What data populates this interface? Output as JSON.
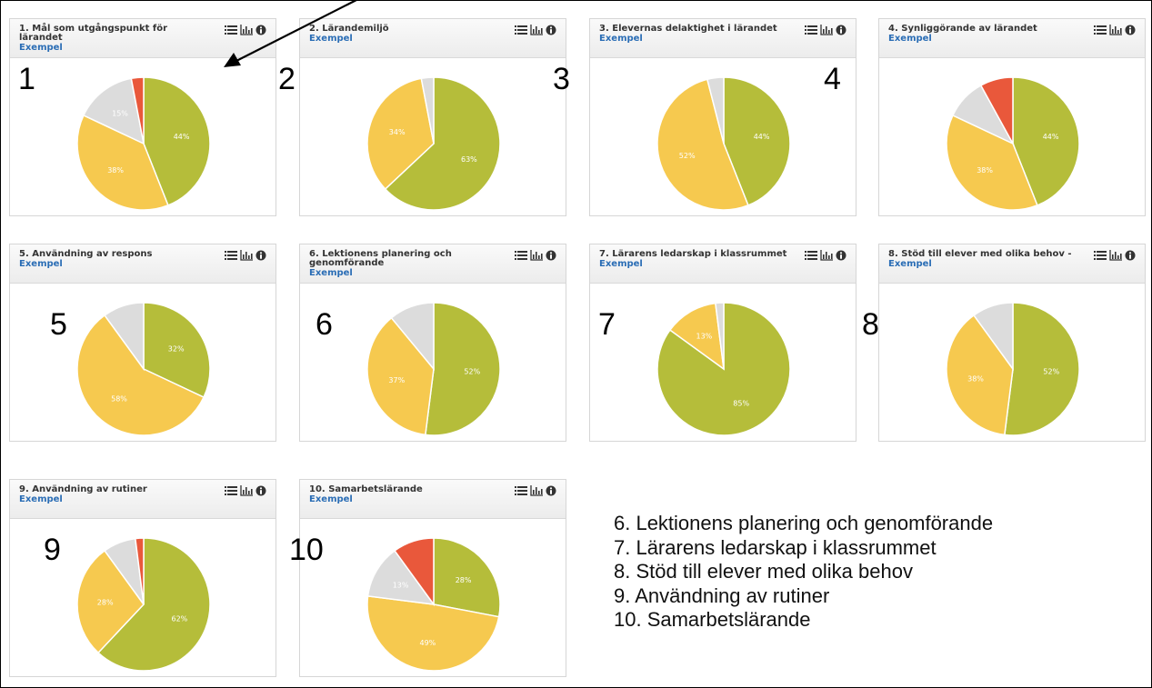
{
  "charts": [
    {
      "title": "1. Mål som utgångspunkt för lärandet",
      "link": "Exempel",
      "number": "1"
    },
    {
      "title": "2. Lärandemiljö",
      "link": "Exempel",
      "number": "2"
    },
    {
      "title": "3. Elevernas delaktighet i lärandet",
      "link": "Exempel",
      "number": "3"
    },
    {
      "title": "4. Synliggörande av lärandet",
      "link": "Exempel",
      "number": "4"
    },
    {
      "title": "5. Användning av respons",
      "link": "Exempel",
      "number": "5"
    },
    {
      "title": "6. Lektionens planering och genomförande",
      "link": "Exempel",
      "number": "6"
    },
    {
      "title": "7. Lärarens ledarskap i klassrummet",
      "link": "Exempel",
      "number": "7"
    },
    {
      "title": "8. Stöd till elever med olika behov -",
      "link": "Exempel",
      "number": "8"
    },
    {
      "title": "9. Användning av rutiner",
      "link": "Exempel",
      "number": "9"
    },
    {
      "title": "10. Samarbetslärande",
      "link": "Exempel",
      "number": "10"
    }
  ],
  "legend": [
    "6. Lektionens planering och genomförande",
    "7. Lärarens ledarskap i klassrummet",
    "8. Stöd till elever med olika behov",
    "9. Användning av rutiner",
    "10. Samarbetslärande"
  ],
  "tool_icons": [
    "list-icon",
    "bar-chart-icon",
    "info-icon"
  ],
  "colors": {
    "green": "#b5bd3a",
    "yellow": "#f6c94f",
    "grey": "#dcdcdc",
    "red": "#e9583b"
  },
  "chart_data": [
    {
      "type": "pie",
      "title": "1. Mål som utgångspunkt för lärandet",
      "slices": [
        {
          "value": 44,
          "color": "green",
          "label": "44%"
        },
        {
          "value": 38,
          "color": "yellow",
          "label": "38%"
        },
        {
          "value": 15,
          "color": "grey",
          "label": "15%"
        },
        {
          "value": 3,
          "color": "red",
          "label": ""
        }
      ]
    },
    {
      "type": "pie",
      "title": "2. Lärandemiljö",
      "slices": [
        {
          "value": 63,
          "color": "green",
          "label": "63%"
        },
        {
          "value": 34,
          "color": "yellow",
          "label": "34%"
        },
        {
          "value": 3,
          "color": "grey",
          "label": ""
        }
      ]
    },
    {
      "type": "pie",
      "title": "3. Elevernas delaktighet i lärandet",
      "slices": [
        {
          "value": 44,
          "color": "green",
          "label": "44%"
        },
        {
          "value": 52,
          "color": "yellow",
          "label": "52%"
        },
        {
          "value": 4,
          "color": "grey",
          "label": ""
        }
      ]
    },
    {
      "type": "pie",
      "title": "4. Synliggörande av lärandet",
      "slices": [
        {
          "value": 44,
          "color": "green",
          "label": "44%"
        },
        {
          "value": 38,
          "color": "yellow",
          "label": "38%"
        },
        {
          "value": 10,
          "color": "grey",
          "label": ""
        },
        {
          "value": 8,
          "color": "red",
          "label": ""
        }
      ]
    },
    {
      "type": "pie",
      "title": "5. Användning av respons",
      "slices": [
        {
          "value": 32,
          "color": "green",
          "label": "32%"
        },
        {
          "value": 58,
          "color": "yellow",
          "label": "58%"
        },
        {
          "value": 10,
          "color": "grey",
          "label": ""
        }
      ]
    },
    {
      "type": "pie",
      "title": "6. Lektionens planering och genomförande",
      "slices": [
        {
          "value": 52,
          "color": "green",
          "label": "52%"
        },
        {
          "value": 37,
          "color": "yellow",
          "label": "37%"
        },
        {
          "value": 11,
          "color": "grey",
          "label": ""
        }
      ]
    },
    {
      "type": "pie",
      "title": "7. Lärarens ledarskap i klassrummet",
      "slices": [
        {
          "value": 85,
          "color": "green",
          "label": "85%"
        },
        {
          "value": 13,
          "color": "yellow",
          "label": "13%"
        },
        {
          "value": 2,
          "color": "grey",
          "label": ""
        }
      ]
    },
    {
      "type": "pie",
      "title": "8. Stöd till elever med olika behov -",
      "slices": [
        {
          "value": 52,
          "color": "green",
          "label": "52%"
        },
        {
          "value": 38,
          "color": "yellow",
          "label": "38%"
        },
        {
          "value": 10,
          "color": "grey",
          "label": ""
        }
      ]
    },
    {
      "type": "pie",
      "title": "9. Användning av rutiner",
      "slices": [
        {
          "value": 62,
          "color": "green",
          "label": "62%"
        },
        {
          "value": 28,
          "color": "yellow",
          "label": "28%"
        },
        {
          "value": 8,
          "color": "grey",
          "label": ""
        },
        {
          "value": 2,
          "color": "red",
          "label": ""
        }
      ]
    },
    {
      "type": "pie",
      "title": "10. Samarbetslärande",
      "slices": [
        {
          "value": 28,
          "color": "green",
          "label": "28%"
        },
        {
          "value": 49,
          "color": "yellow",
          "label": "49%"
        },
        {
          "value": 13,
          "color": "grey",
          "label": "13%"
        },
        {
          "value": 10,
          "color": "red",
          "label": ""
        }
      ]
    }
  ]
}
